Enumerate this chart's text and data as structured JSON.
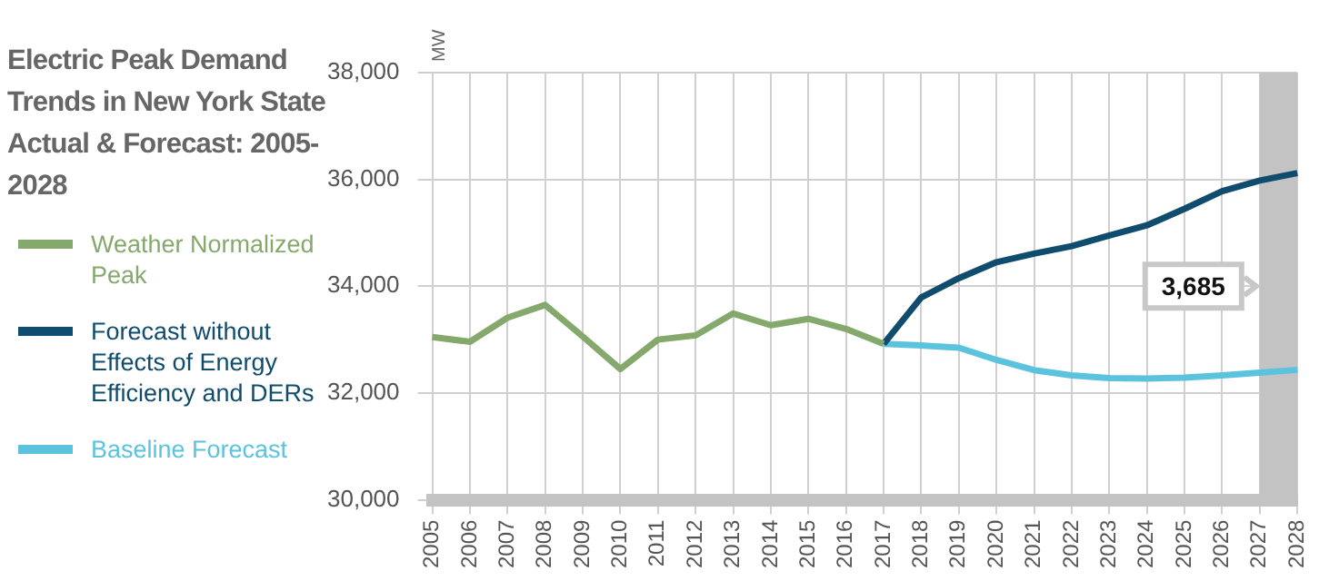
{
  "chart_data": {
    "type": "line",
    "title": "Electric Peak Demand Trends in New York State Actual & Forecast: 2005-2028",
    "ylabel": "MW",
    "categories": [
      "2005",
      "2006",
      "2007",
      "2008",
      "2009",
      "2010",
      "2011",
      "2012",
      "2013",
      "2014",
      "2015",
      "2016",
      "2017",
      "2018",
      "2019",
      "2020",
      "2021",
      "2022",
      "2023",
      "2024",
      "2025",
      "2026",
      "2027",
      "2028"
    ],
    "series": [
      {
        "name": "Weather Normalized Peak",
        "color": "#85a96c",
        "values": [
          33050,
          32960,
          33410,
          33650,
          33060,
          32450,
          33000,
          33080,
          33490,
          33270,
          33390,
          33200,
          32920,
          null,
          null,
          null,
          null,
          null,
          null,
          null,
          null,
          null,
          null,
          null
        ]
      },
      {
        "name": "Forecast without Effects of Energy Efficiency and DERs",
        "color": "#0f4c6d",
        "values": [
          null,
          null,
          null,
          null,
          null,
          null,
          null,
          null,
          null,
          null,
          null,
          null,
          32920,
          33790,
          34150,
          34450,
          34610,
          34750,
          34950,
          35140,
          35450,
          35780,
          35980,
          36120
        ]
      },
      {
        "name": "Baseline Forecast",
        "color": "#5cc3df",
        "values": [
          null,
          null,
          null,
          null,
          null,
          null,
          null,
          null,
          null,
          null,
          null,
          null,
          32920,
          32890,
          32850,
          32620,
          32430,
          32330,
          32280,
          32270,
          32290,
          32330,
          32380,
          32435
        ]
      }
    ],
    "ylim": [
      30000,
      38000
    ],
    "yticks": [
      {
        "value": 30000,
        "label": "30,000"
      },
      {
        "value": 32000,
        "label": "32,000"
      },
      {
        "value": 34000,
        "label": "34,000"
      },
      {
        "value": 36000,
        "label": "36,000"
      },
      {
        "value": 38000,
        "label": "38,000"
      }
    ],
    "bands": [
      {
        "axis": "x",
        "from": "2027",
        "to": "2028",
        "color": "#c3c3c3"
      }
    ],
    "annotations": [
      {
        "text": "3,685",
        "x": "2027",
        "y": 34000
      }
    ],
    "grid": true,
    "legend": "left",
    "marker": "none",
    "line_style": "solid"
  }
}
